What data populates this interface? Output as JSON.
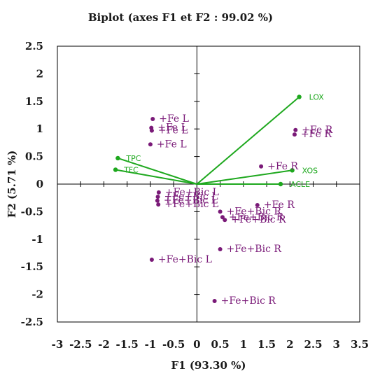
{
  "chart_data": {
    "type": "scatter",
    "title": "Biplot (axes F1 et F2 : 99.02 %)",
    "xlabel": "F1 (93.30 %)",
    "ylabel": "F2 (5.71 %)",
    "xlim": [
      -3,
      3.5
    ],
    "ylim": [
      -2.5,
      2.5
    ],
    "x_ticks": [
      "-3",
      "-2.5",
      "-2",
      "-1.5",
      "-1",
      "-0.5",
      "0",
      "0.5",
      "1",
      "1.5",
      "2",
      "2.5",
      "3",
      "3.5"
    ],
    "y_ticks": [
      "2.5",
      "2",
      "1.5",
      "1",
      "0.5",
      "0",
      "-0.5",
      "-1",
      "-1.5",
      "-2",
      "-2.5"
    ],
    "grid": false,
    "colors": {
      "observations": "#7a1a78",
      "variables": "#1ea81e",
      "axes": "#000000"
    },
    "variables": [
      {
        "name": "LOX",
        "x": 2.2,
        "y": 1.58
      },
      {
        "name": "XOS",
        "x": 2.05,
        "y": 0.25
      },
      {
        "name": "ACLE",
        "x": 1.8,
        "y": 0.0
      },
      {
        "name": "TPC",
        "x": -1.7,
        "y": 0.47
      },
      {
        "name": "TFC",
        "x": -1.75,
        "y": 0.26
      }
    ],
    "observations": [
      {
        "label": "+Fe L",
        "x": -0.95,
        "y": 1.18
      },
      {
        "label": "+Fe L",
        "x": -0.98,
        "y": 1.02
      },
      {
        "label": "+Fe L",
        "x": -0.97,
        "y": 0.97
      },
      {
        "label": "+Fe L",
        "x": -1.0,
        "y": 0.72
      },
      {
        "label": "+Fe R",
        "x": 2.12,
        "y": 0.98
      },
      {
        "label": "+Fe R",
        "x": 2.1,
        "y": 0.9
      },
      {
        "label": "+Fe R",
        "x": 1.38,
        "y": 0.32
      },
      {
        "label": "+Fe R",
        "x": 1.3,
        "y": -0.38
      },
      {
        "label": "+Fe+Bic L",
        "x": -0.82,
        "y": -0.15
      },
      {
        "label": "+Fe+Bic L",
        "x": -0.84,
        "y": -0.23
      },
      {
        "label": "+Fe+Bic L",
        "x": -0.85,
        "y": -0.3
      },
      {
        "label": "+Fe+Bic L",
        "x": -0.83,
        "y": -0.37
      },
      {
        "label": "+Fe+Bic L",
        "x": -0.97,
        "y": -1.37
      },
      {
        "label": "+Fe+Bic R",
        "x": 0.5,
        "y": -0.5
      },
      {
        "label": "+Fe+Bic R",
        "x": 0.55,
        "y": -0.6
      },
      {
        "label": "+Fe+Bic R",
        "x": 0.6,
        "y": -0.65
      },
      {
        "label": "+Fe+Bic R",
        "x": 0.5,
        "y": -1.18
      },
      {
        "label": "+Fe+Bic R",
        "x": 0.38,
        "y": -2.12
      }
    ]
  }
}
